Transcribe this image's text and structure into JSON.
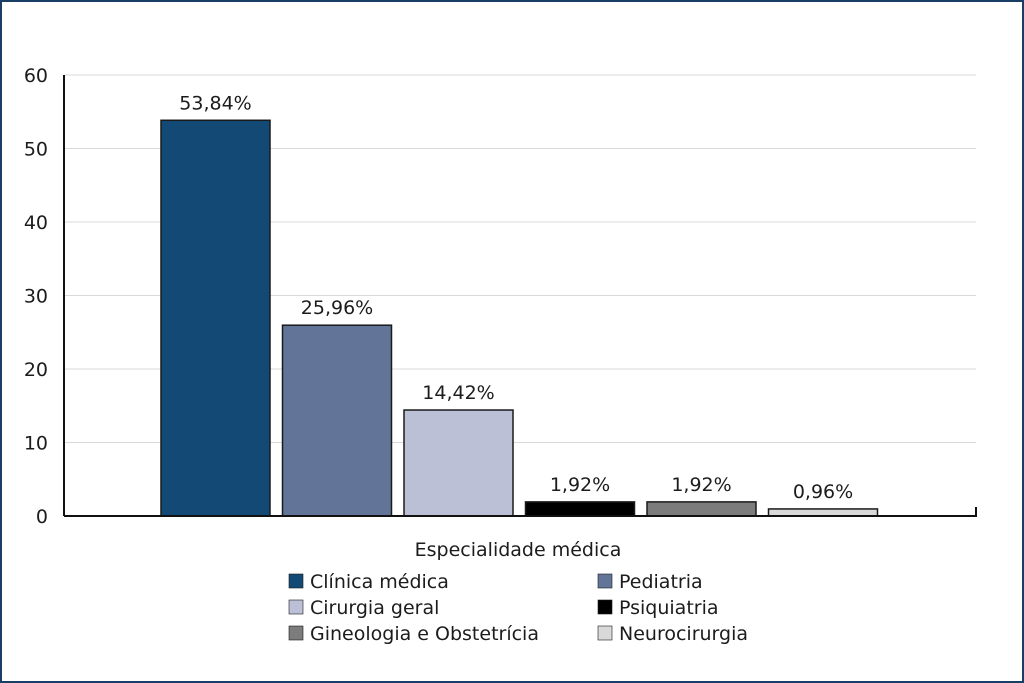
{
  "chart_data": {
    "type": "bar",
    "title": "",
    "xlabel": "Especialidade médica",
    "ylabel": "",
    "ylim": [
      0,
      60
    ],
    "yticks": [
      0,
      10,
      20,
      30,
      40,
      50,
      60
    ],
    "grid": true,
    "legend_position": "bottom",
    "categories": [
      "Clínica médica",
      "Pediatria",
      "Cirurgia geral",
      "Psiquiatria",
      "Gineologia e Obstetrícia",
      "Neurocirurgia"
    ],
    "values": [
      53.84,
      25.96,
      14.42,
      1.92,
      1.92,
      0.96
    ],
    "value_labels": [
      "53,84%",
      "25,96%",
      "14,42%",
      "1,92%",
      "1,92%",
      "0,96%"
    ],
    "colors": [
      "#134a75",
      "#627599",
      "#bcc0d6",
      "#000000",
      "#7c7c7c",
      "#d9d9d9"
    ],
    "frame_color": "#1a3f66"
  }
}
